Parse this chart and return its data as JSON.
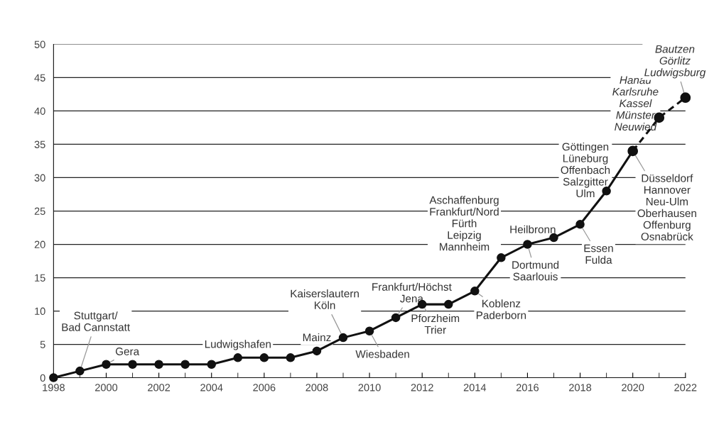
{
  "chart_data": {
    "type": "line",
    "series": [
      {
        "color": "#111111",
        "line_style": "solid",
        "x": [
          1998,
          1999,
          2000,
          2001,
          2002,
          2003,
          2004,
          2005,
          2006,
          2007,
          2008,
          2009,
          2010,
          2011,
          2012,
          2013,
          2014,
          2015,
          2016,
          2017,
          2018,
          2019,
          2020
        ],
        "values": [
          0,
          1,
          2,
          2,
          2,
          2,
          2,
          3,
          3,
          3,
          4,
          6,
          7,
          9,
          11,
          11,
          13,
          18,
          20,
          21,
          23,
          28,
          34
        ]
      },
      {
        "color": "#111111",
        "line_style": "dashed",
        "x": [
          2020,
          2021,
          2022
        ],
        "values": [
          34,
          39,
          42
        ]
      }
    ],
    "marker": "circle",
    "xlim": [
      1998,
      2022
    ],
    "xticks": [
      1998,
      2000,
      2002,
      2004,
      2006,
      2008,
      2010,
      2012,
      2014,
      2016,
      2018,
      2020,
      2022
    ],
    "ylim": [
      0,
      50
    ],
    "yticks": [
      0,
      5,
      10,
      15,
      20,
      25,
      30,
      35,
      40,
      45,
      50
    ],
    "grid": "y",
    "annotations": [
      {
        "text": "Stuttgart/\nBad Cannstatt",
        "x": 1999,
        "y": 1
      },
      {
        "text": "Gera",
        "x": 2000,
        "y": 2
      },
      {
        "text": "Ludwigshafen",
        "x": 2005,
        "y": 3
      },
      {
        "text": "Mainz",
        "x": 2008,
        "y": 4
      },
      {
        "text": "Kaiserslautern\nKöln",
        "x": 2009,
        "y": 6
      },
      {
        "text": "Wiesbaden",
        "x": 2010,
        "y": 7
      },
      {
        "text": "Frankfurt/Höchst\nJena",
        "x": 2011,
        "y": 9
      },
      {
        "text": "Pforzheim\nTrier",
        "x": 2012,
        "y": 11
      },
      {
        "text": "Koblenz\nPaderborn",
        "x": 2014,
        "y": 13
      },
      {
        "text": "Aschaffenburg\nFrankfurt/Nord\nFürth\nLeipzig\nMannheim",
        "x": 2015,
        "y": 18
      },
      {
        "text": "Dortmund\nSaarlouis",
        "x": 2016,
        "y": 20
      },
      {
        "text": "Heilbronn",
        "x": 2017,
        "y": 21
      },
      {
        "text": "Essen\nFulda",
        "x": 2018,
        "y": 23
      },
      {
        "text": "Göttingen\nLüneburg\nOffenbach\nSalzgitter\nUlm",
        "x": 2019,
        "y": 28
      },
      {
        "text": "Düsseldorf\nHannover\nNeu-Ulm\nOberhausen\nOffenburg\nOsnabrück",
        "x": 2020,
        "y": 34
      },
      {
        "text": "Hanau\nKarlsruhe\nKassel\nMünster\nNeuwied",
        "x": 2021,
        "y": 39
      },
      {
        "text": "Bautzen\nGörlitz\nLudwigsburg",
        "x": 2022,
        "y": 42
      }
    ]
  }
}
